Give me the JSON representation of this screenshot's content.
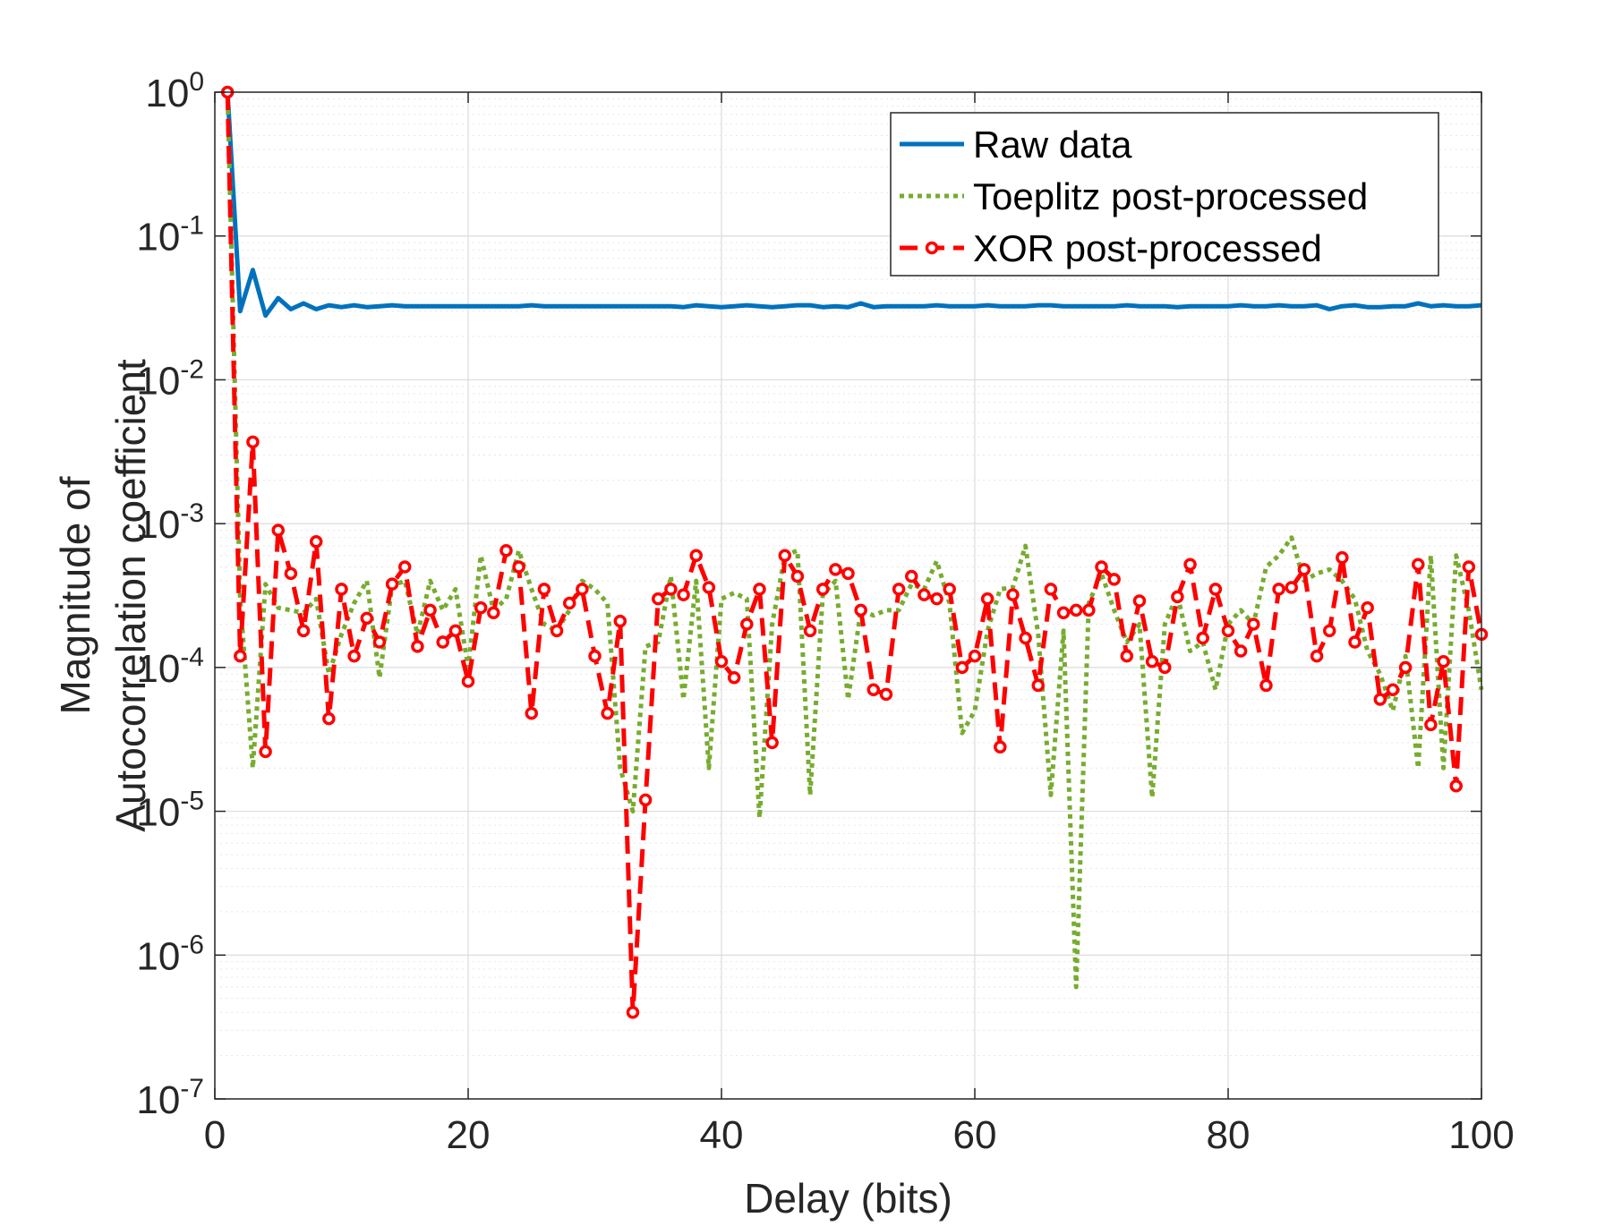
{
  "chart_data": {
    "type": "line",
    "title": "",
    "xlabel": "Delay (bits)",
    "ylabel": [
      "Magnitude of",
      "Autocorrelation coefficient"
    ],
    "yscale": "log",
    "xlim": [
      0,
      100
    ],
    "ylim": [
      1e-07,
      1
    ],
    "grid": true,
    "xticks": [
      {
        "value": 0,
        "label": "0"
      },
      {
        "value": 20,
        "label": "20"
      },
      {
        "value": 40,
        "label": "40"
      },
      {
        "value": 60,
        "label": "60"
      },
      {
        "value": 80,
        "label": "80"
      },
      {
        "value": 100,
        "label": "100"
      }
    ],
    "yticks": [
      {
        "exp": 0,
        "base": "10",
        "sup": "0"
      },
      {
        "exp": -1,
        "base": "10",
        "sup": "-1"
      },
      {
        "exp": -2,
        "base": "10",
        "sup": "-2"
      },
      {
        "exp": -3,
        "base": "10",
        "sup": "-3"
      },
      {
        "exp": -4,
        "base": "10",
        "sup": "-4"
      },
      {
        "exp": -5,
        "base": "10",
        "sup": "-5"
      },
      {
        "exp": -6,
        "base": "10",
        "sup": "-6"
      },
      {
        "exp": -7,
        "base": "10",
        "sup": "-7"
      }
    ],
    "legend_position": "top-right",
    "series": [
      {
        "name": "Raw data",
        "color": "#0072BD",
        "style": "solid",
        "marker": "none",
        "x": [
          1,
          2,
          3,
          4,
          5,
          6,
          7,
          8,
          9,
          10,
          11,
          12,
          13,
          14,
          15,
          16,
          17,
          18,
          19,
          20,
          21,
          22,
          23,
          24,
          25,
          26,
          27,
          28,
          29,
          30,
          31,
          32,
          33,
          34,
          35,
          36,
          37,
          38,
          39,
          40,
          41,
          42,
          43,
          44,
          45,
          46,
          47,
          48,
          49,
          50,
          51,
          52,
          53,
          54,
          55,
          56,
          57,
          58,
          59,
          60,
          61,
          62,
          63,
          64,
          65,
          66,
          67,
          68,
          69,
          70,
          71,
          72,
          73,
          74,
          75,
          76,
          77,
          78,
          79,
          80,
          81,
          82,
          83,
          84,
          85,
          86,
          87,
          88,
          89,
          90,
          91,
          92,
          93,
          94,
          95,
          96,
          97,
          98,
          99,
          100
        ],
        "y": [
          1,
          0.03,
          0.058,
          0.028,
          0.037,
          0.031,
          0.034,
          0.031,
          0.033,
          0.032,
          0.033,
          0.032,
          0.0325,
          0.033,
          0.0325,
          0.0325,
          0.0325,
          0.0325,
          0.0325,
          0.0325,
          0.0325,
          0.0325,
          0.0325,
          0.0325,
          0.033,
          0.0325,
          0.0325,
          0.0325,
          0.0325,
          0.0325,
          0.0325,
          0.0325,
          0.0325,
          0.0325,
          0.0325,
          0.0325,
          0.032,
          0.033,
          0.0325,
          0.032,
          0.0325,
          0.033,
          0.0325,
          0.032,
          0.0325,
          0.033,
          0.033,
          0.032,
          0.0325,
          0.032,
          0.034,
          0.032,
          0.0325,
          0.0325,
          0.0325,
          0.0325,
          0.033,
          0.0325,
          0.0325,
          0.0325,
          0.033,
          0.0325,
          0.0325,
          0.0325,
          0.033,
          0.033,
          0.0325,
          0.0325,
          0.0325,
          0.0325,
          0.0325,
          0.033,
          0.0325,
          0.0325,
          0.0325,
          0.032,
          0.0325,
          0.0325,
          0.0325,
          0.0325,
          0.033,
          0.0325,
          0.0325,
          0.033,
          0.0325,
          0.0325,
          0.033,
          0.031,
          0.0325,
          0.033,
          0.032,
          0.032,
          0.0325,
          0.0325,
          0.034,
          0.0325,
          0.033,
          0.0325,
          0.0325,
          0.033
        ]
      },
      {
        "name": "Toeplitz post-processed",
        "color": "#77AC30",
        "style": "dotted",
        "marker": "none",
        "x": [
          1,
          2,
          3,
          4,
          5,
          6,
          7,
          8,
          9,
          10,
          11,
          12,
          13,
          14,
          15,
          16,
          17,
          18,
          19,
          20,
          21,
          22,
          23,
          24,
          25,
          26,
          27,
          28,
          29,
          30,
          31,
          32,
          33,
          34,
          35,
          36,
          37,
          38,
          39,
          40,
          41,
          42,
          43,
          44,
          45,
          46,
          47,
          48,
          49,
          50,
          51,
          52,
          53,
          54,
          55,
          56,
          57,
          58,
          59,
          60,
          61,
          62,
          63,
          64,
          65,
          66,
          67,
          68,
          69,
          70,
          71,
          72,
          73,
          74,
          75,
          76,
          77,
          78,
          79,
          80,
          81,
          82,
          83,
          84,
          85,
          86,
          87,
          88,
          89,
          90,
          91,
          92,
          93,
          94,
          95,
          96,
          97,
          98,
          99,
          100
        ],
        "y": [
          1,
          0.0003,
          2e-05,
          0.00038,
          0.00026,
          0.00025,
          0.00024,
          0.0003,
          9e-05,
          0.00017,
          0.00028,
          0.0004,
          8.5e-05,
          0.00037,
          0.0004,
          0.00017,
          0.0004,
          0.00025,
          0.00035,
          0.0001,
          0.0006,
          0.00025,
          0.0003,
          0.00065,
          0.00035,
          0.0002,
          0.00018,
          0.00025,
          0.0004,
          0.00035,
          0.00028,
          2e-05,
          1e-05,
          0.00014,
          0.00015,
          0.00043,
          6e-05,
          0.0004,
          2e-05,
          0.0003,
          0.00033,
          0.0003,
          9e-06,
          0.0002,
          0.0006,
          0.00065,
          1.3e-05,
          0.00032,
          0.0004,
          6e-05,
          0.00025,
          0.00023,
          0.00025,
          0.00025,
          0.00038,
          0.00035,
          0.00055,
          0.00028,
          3.5e-05,
          5e-05,
          0.00018,
          0.00035,
          0.00036,
          0.0007,
          0.00017,
          1.3e-05,
          0.00018,
          6e-07,
          0.00028,
          0.00045,
          0.00025,
          0.00015,
          0.0002,
          1.25e-05,
          0.0002,
          0.00032,
          0.00013,
          0.00015,
          7e-05,
          0.0002,
          0.00025,
          0.0002,
          0.0005,
          0.0006,
          0.0008,
          0.0004,
          0.00045,
          0.00048,
          0.0004,
          0.0003,
          0.00013,
          9e-05,
          5e-05,
          0.00012,
          2e-05,
          0.0006,
          2e-05,
          0.0006,
          0.00025,
          7e-05
        ]
      },
      {
        "name": "XOR post-processed",
        "color": "#FF0000",
        "style": "dashed",
        "marker": "circle",
        "x": [
          1,
          2,
          3,
          4,
          5,
          6,
          7,
          8,
          9,
          10,
          11,
          12,
          13,
          14,
          15,
          16,
          17,
          18,
          19,
          20,
          21,
          22,
          23,
          24,
          25,
          26,
          27,
          28,
          29,
          30,
          31,
          32,
          33,
          34,
          35,
          36,
          37,
          38,
          39,
          40,
          41,
          42,
          43,
          44,
          45,
          46,
          47,
          48,
          49,
          50,
          51,
          52,
          53,
          54,
          55,
          56,
          57,
          58,
          59,
          60,
          61,
          62,
          63,
          64,
          65,
          66,
          67,
          68,
          69,
          70,
          71,
          72,
          73,
          74,
          75,
          76,
          77,
          78,
          79,
          80,
          81,
          82,
          83,
          84,
          85,
          86,
          87,
          88,
          89,
          90,
          91,
          92,
          93,
          94,
          95,
          96,
          97,
          98,
          99,
          100
        ],
        "y": [
          1,
          0.00012,
          0.0037,
          2.6e-05,
          0.0009,
          0.00045,
          0.00018,
          0.00075,
          4.4e-05,
          0.00035,
          0.00012,
          0.00022,
          0.00015,
          0.00038,
          0.0005,
          0.00014,
          0.00025,
          0.00015,
          0.00018,
          8e-05,
          0.00026,
          0.00024,
          0.00065,
          0.0005,
          4.8e-05,
          0.00035,
          0.00018,
          0.00028,
          0.00035,
          0.00012,
          4.8e-05,
          0.00021,
          4e-07,
          1.2e-05,
          0.0003,
          0.00035,
          0.00032,
          0.0006,
          0.00036,
          0.00011,
          8.5e-05,
          0.0002,
          0.00035,
          3e-05,
          0.0006,
          0.00043,
          0.00018,
          0.00035,
          0.00048,
          0.00045,
          0.00025,
          7e-05,
          6.5e-05,
          0.00035,
          0.00043,
          0.00032,
          0.0003,
          0.00035,
          0.0001,
          0.00012,
          0.0003,
          2.8e-05,
          0.00032,
          0.00016,
          7.5e-05,
          0.00035,
          0.00024,
          0.00025,
          0.00025,
          0.0005,
          0.00041,
          0.00012,
          0.00029,
          0.00011,
          0.0001,
          0.00031,
          0.00052,
          0.00016,
          0.00035,
          0.00018,
          0.00013,
          0.0002,
          7.5e-05,
          0.00035,
          0.00036,
          0.00048,
          0.00012,
          0.00018,
          0.00058,
          0.00015,
          0.00026,
          6e-05,
          7e-05,
          0.0001,
          0.00052,
          4e-05,
          0.00011,
          1.5e-05,
          0.0005,
          0.00017
        ]
      }
    ]
  }
}
